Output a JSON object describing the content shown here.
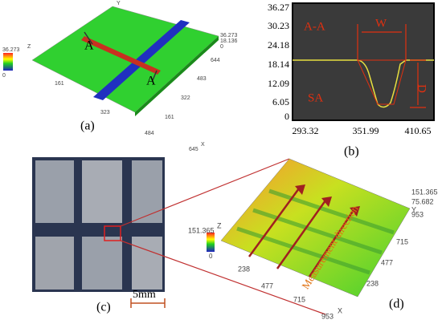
{
  "panel_a": {
    "caption": "(a)",
    "section_labels": [
      "A",
      "A"
    ],
    "axes": [
      "X",
      "Y",
      "Z"
    ],
    "colorbar": [
      "36.273",
      "0"
    ],
    "z_ticks": [
      "36.273",
      "18.136",
      "0"
    ],
    "y_ticks": [
      "644",
      "483",
      "322",
      "161"
    ],
    "x_ticks": [
      "161",
      "323",
      "484",
      "645"
    ]
  },
  "panel_b": {
    "caption": "(b)",
    "title": "A-A",
    "labels": [
      "W",
      "D",
      "SA"
    ],
    "y_ticks": [
      "36.27",
      "30.23",
      "24.18",
      "18.14",
      "12.09",
      "6.05",
      "0"
    ],
    "x_ticks": [
      "293.32",
      "351.99",
      "410.65"
    ]
  },
  "panel_c": {
    "caption": "(c)",
    "scale": "5mm"
  },
  "panel_d": {
    "caption": "(d)",
    "annotation": "Measurement direction",
    "axes": [
      "X",
      "Y",
      "Z"
    ],
    "colorbar": [
      "151.365",
      "0"
    ],
    "z_ticks": [
      "151.365",
      "75.682"
    ],
    "y_ticks": [
      "953",
      "715",
      "477",
      "238"
    ],
    "x_ticks": [
      "238",
      "477",
      "715",
      "953"
    ]
  }
}
